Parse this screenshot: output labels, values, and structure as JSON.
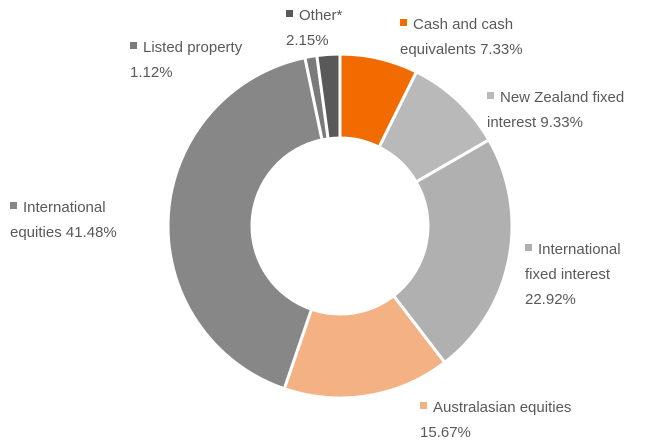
{
  "chart_data": {
    "type": "donut",
    "categories": [
      "Cash and cash equivalents",
      "New Zealand fixed interest",
      "International fixed interest",
      "Australasian equities",
      "International equities",
      "Listed property",
      "Other*"
    ],
    "values": [
      7.33,
      9.33,
      22.92,
      15.67,
      41.48,
      1.12,
      2.15
    ],
    "value_labels": [
      "7.33%",
      "9.33%",
      "22.92%",
      "15.67%",
      "41.48%",
      "1.12%",
      "2.15%"
    ],
    "colors": [
      "#f26b00",
      "#b9b9b9",
      "#b0b0b0",
      "#f4b183",
      "#878787",
      "#7a7a7a",
      "#595959"
    ]
  }
}
